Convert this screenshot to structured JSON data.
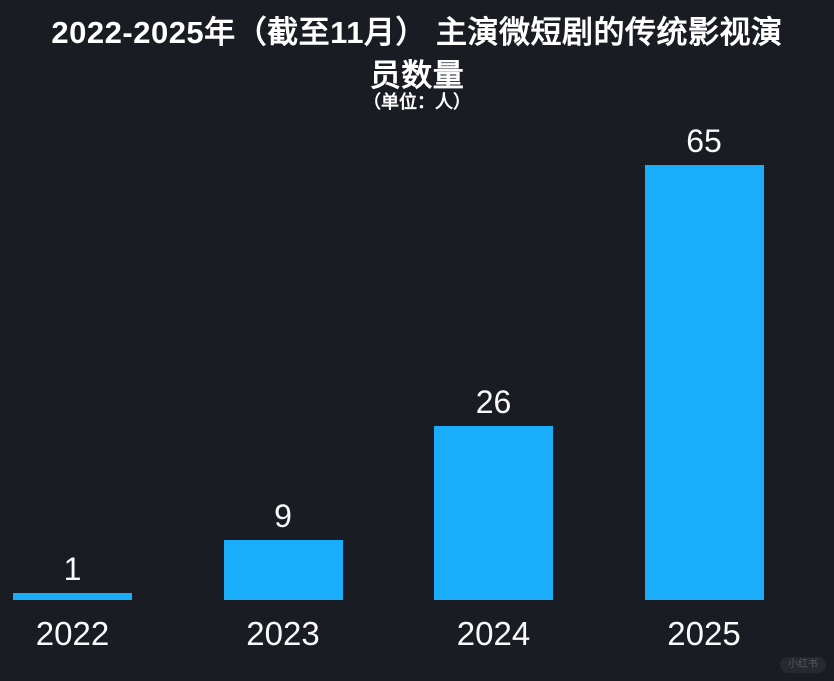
{
  "header": {
    "title_line1": "2022-2025年（截至11月） 主演微短剧的传统影视演",
    "title_line2": "员数量",
    "subtitle": "（单位：人）"
  },
  "chart_data": {
    "type": "bar",
    "title": "2022-2025年（截至11月） 主演微短剧的传统影视演员数量",
    "subtitle": "（单位：人）",
    "unit": "人",
    "categories": [
      "2022",
      "2023",
      "2024",
      "2025"
    ],
    "values": [
      1,
      9,
      26,
      65
    ],
    "xlabel": "",
    "ylabel": "",
    "ylim": [
      0,
      65
    ],
    "grid": false,
    "legend": false,
    "data_labels": [
      1,
      9,
      26,
      65
    ],
    "bar_color": "#1AAEFA",
    "background_color": "#1A1C24",
    "text_color": "#FFFFFF"
  },
  "watermark": {
    "label": "小红书"
  }
}
